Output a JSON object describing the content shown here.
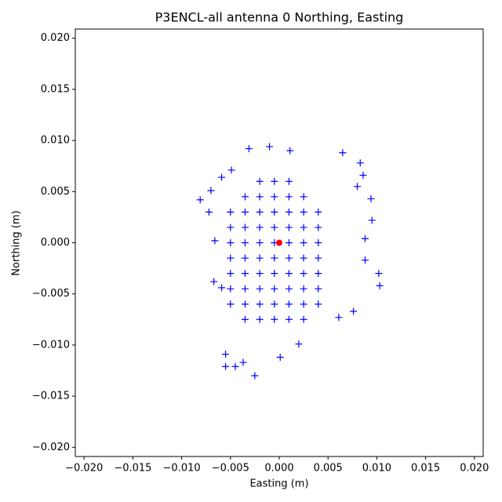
{
  "chart_data": {
    "type": "scatter",
    "title": "P3ENCL-all antenna 0 Northing, Easting",
    "xlabel": "Easting (m)",
    "ylabel": "Northing (m)",
    "xlim": [
      -0.0209,
      0.0209
    ],
    "ylim": [
      -0.0209,
      0.0209
    ],
    "xticks": [
      {
        "value": -0.02,
        "label": "−0.020"
      },
      {
        "value": -0.015,
        "label": "−0.015"
      },
      {
        "value": -0.01,
        "label": "−0.010"
      },
      {
        "value": -0.005,
        "label": "−0.005"
      },
      {
        "value": 0,
        "label": "0.000"
      },
      {
        "value": 0.005,
        "label": "0.005"
      },
      {
        "value": 0.01,
        "label": "0.010"
      },
      {
        "value": 0.015,
        "label": "0.015"
      },
      {
        "value": 0.02,
        "label": "0.020"
      }
    ],
    "yticks": [
      {
        "value": -0.02,
        "label": "−0.020"
      },
      {
        "value": -0.015,
        "label": "−0.015"
      },
      {
        "value": -0.01,
        "label": "−0.010"
      },
      {
        "value": -0.005,
        "label": "−0.005"
      },
      {
        "value": 0,
        "label": "0.000"
      },
      {
        "value": 0.005,
        "label": "0.005"
      },
      {
        "value": 0.01,
        "label": "0.010"
      },
      {
        "value": 0.015,
        "label": "0.015"
      },
      {
        "value": 0.02,
        "label": "0.020"
      }
    ],
    "series": [
      {
        "color": "#0000ff",
        "marker": "+",
        "x": [
          -0.0081,
          -0.007,
          -0.0072,
          -0.0066,
          -0.0067,
          -0.0059,
          -0.0055,
          -0.0045,
          -0.0025,
          0.0001,
          0.002,
          -0.0031,
          -0.001,
          0.0011,
          0.0065,
          0.0083,
          0.0086,
          0.0094,
          0.0095,
          0.0088,
          0.0102,
          0.0103,
          0.0076,
          0.0061,
          -0.0055,
          -0.0037,
          -0.0059,
          -0.0049,
          0.008,
          0.0088,
          -0.002,
          -0.0005,
          0.001,
          -0.0035,
          -0.002,
          -0.0005,
          0.001,
          0.0025,
          -0.005,
          -0.0035,
          -0.002,
          -0.0005,
          0.001,
          0.0025,
          0.004,
          -0.005,
          -0.0035,
          -0.002,
          -0.0005,
          0.001,
          0.0025,
          0.004,
          -0.005,
          -0.0035,
          -0.002,
          -0.0005,
          0.001,
          0.0025,
          0.004,
          -0.005,
          -0.0035,
          -0.002,
          -0.0005,
          0.001,
          0.0025,
          0.004,
          -0.005,
          -0.0035,
          -0.002,
          -0.0005,
          0.001,
          0.0025,
          0.004,
          -0.005,
          -0.0035,
          -0.002,
          -0.0005,
          0.001,
          0.0025,
          0.004,
          -0.005,
          -0.0035,
          -0.002,
          -0.0005,
          0.001,
          0.0025,
          0.004,
          -0.0035,
          -0.002,
          -0.0005,
          0.001,
          0.0025
        ],
        "values": [
          0.0042,
          0.0051,
          0.003,
          0.0002,
          -0.0038,
          -0.0044,
          -0.0121,
          -0.0121,
          -0.013,
          -0.0112,
          -0.0099,
          0.0092,
          0.0094,
          0.009,
          0.0088,
          0.0078,
          0.0066,
          0.0043,
          0.0022,
          -0.0017,
          -0.003,
          -0.0042,
          -0.0067,
          -0.0073,
          -0.0109,
          -0.0117,
          0.0064,
          0.0071,
          0.0055,
          0.0004,
          0.006,
          0.006,
          0.006,
          0.0045,
          0.0045,
          0.0045,
          0.0045,
          0.0045,
          0.003,
          0.003,
          0.003,
          0.003,
          0.003,
          0.003,
          0.003,
          0.0015,
          0.0015,
          0.0015,
          0.0015,
          0.0015,
          0.0015,
          0.0015,
          0,
          0,
          0,
          0,
          0,
          0,
          0,
          -0.0015,
          -0.0015,
          -0.0015,
          -0.0015,
          -0.0015,
          -0.0015,
          -0.0015,
          -0.003,
          -0.003,
          -0.003,
          -0.003,
          -0.003,
          -0.003,
          -0.003,
          -0.0045,
          -0.0045,
          -0.0045,
          -0.0045,
          -0.0045,
          -0.0045,
          -0.0045,
          -0.006,
          -0.006,
          -0.006,
          -0.006,
          -0.006,
          -0.006,
          -0.006,
          -0.0075,
          -0.0075,
          -0.0075,
          -0.0075,
          -0.0075
        ]
      },
      {
        "color": "#ff0000",
        "marker": "o",
        "x": [
          0
        ],
        "values": [
          0
        ]
      }
    ]
  }
}
